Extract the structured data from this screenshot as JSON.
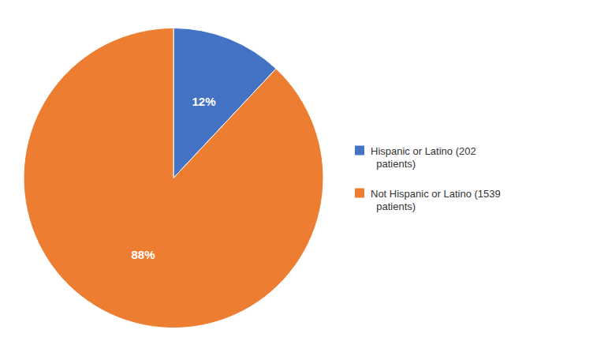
{
  "chart_data": {
    "type": "pie",
    "categories": [
      "Hispanic or Latino (202\n  patients)",
      "Not Hispanic or Latino (1539\n  patients)"
    ],
    "values": [
      12,
      88
    ],
    "value_labels": [
      "12%",
      "88%"
    ],
    "colors": [
      "#4472C4",
      "#ED7D31"
    ],
    "data_labels": true,
    "legend": "right"
  }
}
